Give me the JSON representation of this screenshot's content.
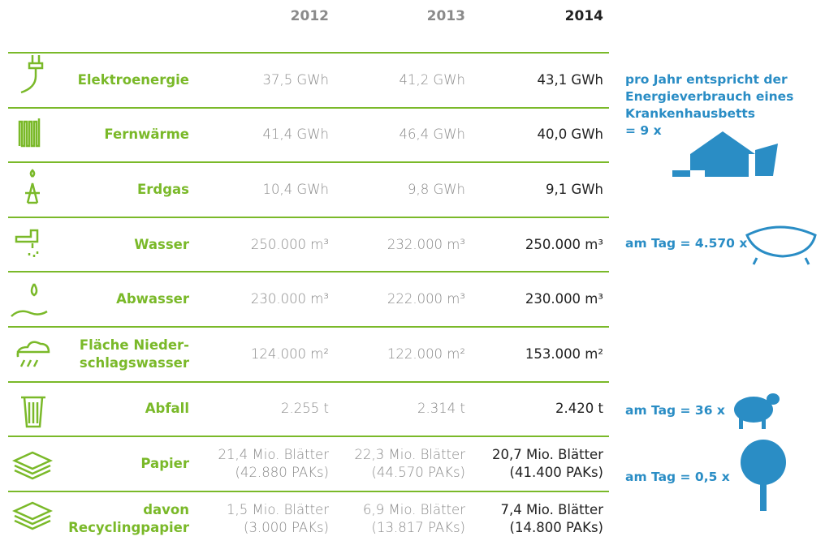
{
  "table": {
    "columns": [
      "2012",
      "2013",
      "2014"
    ],
    "rows": [
      {
        "label": "Elektroenergie",
        "values": [
          "37,5 GWh",
          "41,2 GWh",
          "43,1 GWh"
        ]
      },
      {
        "label": "Fernwärme",
        "values": [
          "41,4 GWh",
          "46,4 GWh",
          "40,0 GWh"
        ]
      },
      {
        "label": "Erdgas",
        "values": [
          "10,4 GWh",
          "9,8 GWh",
          "9,1 GWh"
        ]
      },
      {
        "label": "Wasser",
        "values": [
          "250.000 m³",
          "232.000 m³",
          "250.000 m³"
        ]
      },
      {
        "label": "Abwasser",
        "values": [
          "230.000 m³",
          "222.000 m³",
          "230.000 m³"
        ]
      },
      {
        "label": [
          "Fläche Nieder-",
          "schlagswasser"
        ],
        "values": [
          "124.000 m²",
          "122.000 m²",
          "153.000 m²"
        ]
      },
      {
        "label": "Abfall",
        "values": [
          "2.255 t",
          "2.314 t",
          "2.420 t"
        ]
      },
      {
        "label": "Papier",
        "values": [
          [
            "21,4 Mio. Blätter",
            "(42.880 PAKs)"
          ],
          [
            "22,3 Mio. Blätter",
            "(44.570 PAKs)"
          ],
          [
            "20,7 Mio. Blätter",
            "(41.400 PAKs)"
          ]
        ]
      },
      {
        "label": [
          "davon",
          "Recyclingpapier"
        ],
        "values": [
          [
            "1,5 Mio. Blätter",
            "(3.000 PAKs)"
          ],
          [
            "6,9 Mio. Blätter",
            "(13.817 PAKs)"
          ],
          [
            "7,4 Mio. Blätter",
            "(14.800 PAKs)"
          ]
        ]
      }
    ]
  },
  "notes": [
    {
      "lines": [
        "pro Jahr entspricht der",
        "Energieverbrauch eines",
        "Krankenhausbetts",
        "= 9 x"
      ]
    },
    {
      "lines": [
        "am Tag = 4.570 x"
      ]
    },
    {
      "lines": [
        "am Tag = 36 x"
      ]
    },
    {
      "lines": [
        "am Tag = 0,5 x"
      ]
    }
  ]
}
